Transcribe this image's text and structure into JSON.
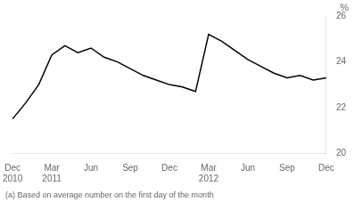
{
  "chart_data": {
    "type": "line",
    "ylabel": "%",
    "footnote": "(a) Based on average number on the first day of the month",
    "categories": [
      "Dec\n2010",
      null,
      null,
      "Mar\n2011",
      null,
      null,
      "Jun",
      null,
      null,
      "Sep",
      null,
      null,
      "Dec",
      null,
      null,
      "Mar\n2012",
      null,
      null,
      "Jun",
      null,
      null,
      "Sep",
      null,
      null,
      "Dec"
    ],
    "values": [
      21.5,
      22.2,
      23.0,
      24.3,
      24.7,
      24.4,
      24.6,
      24.2,
      24.0,
      23.7,
      23.4,
      23.2,
      23.0,
      22.9,
      22.7,
      25.2,
      24.9,
      24.5,
      24.1,
      23.8,
      23.5,
      23.3,
      23.4,
      23.2,
      23.3
    ],
    "color": "#000000",
    "ylim": [
      20,
      26
    ],
    "yticks": [
      20,
      22,
      24,
      26
    ],
    "grid": false
  }
}
